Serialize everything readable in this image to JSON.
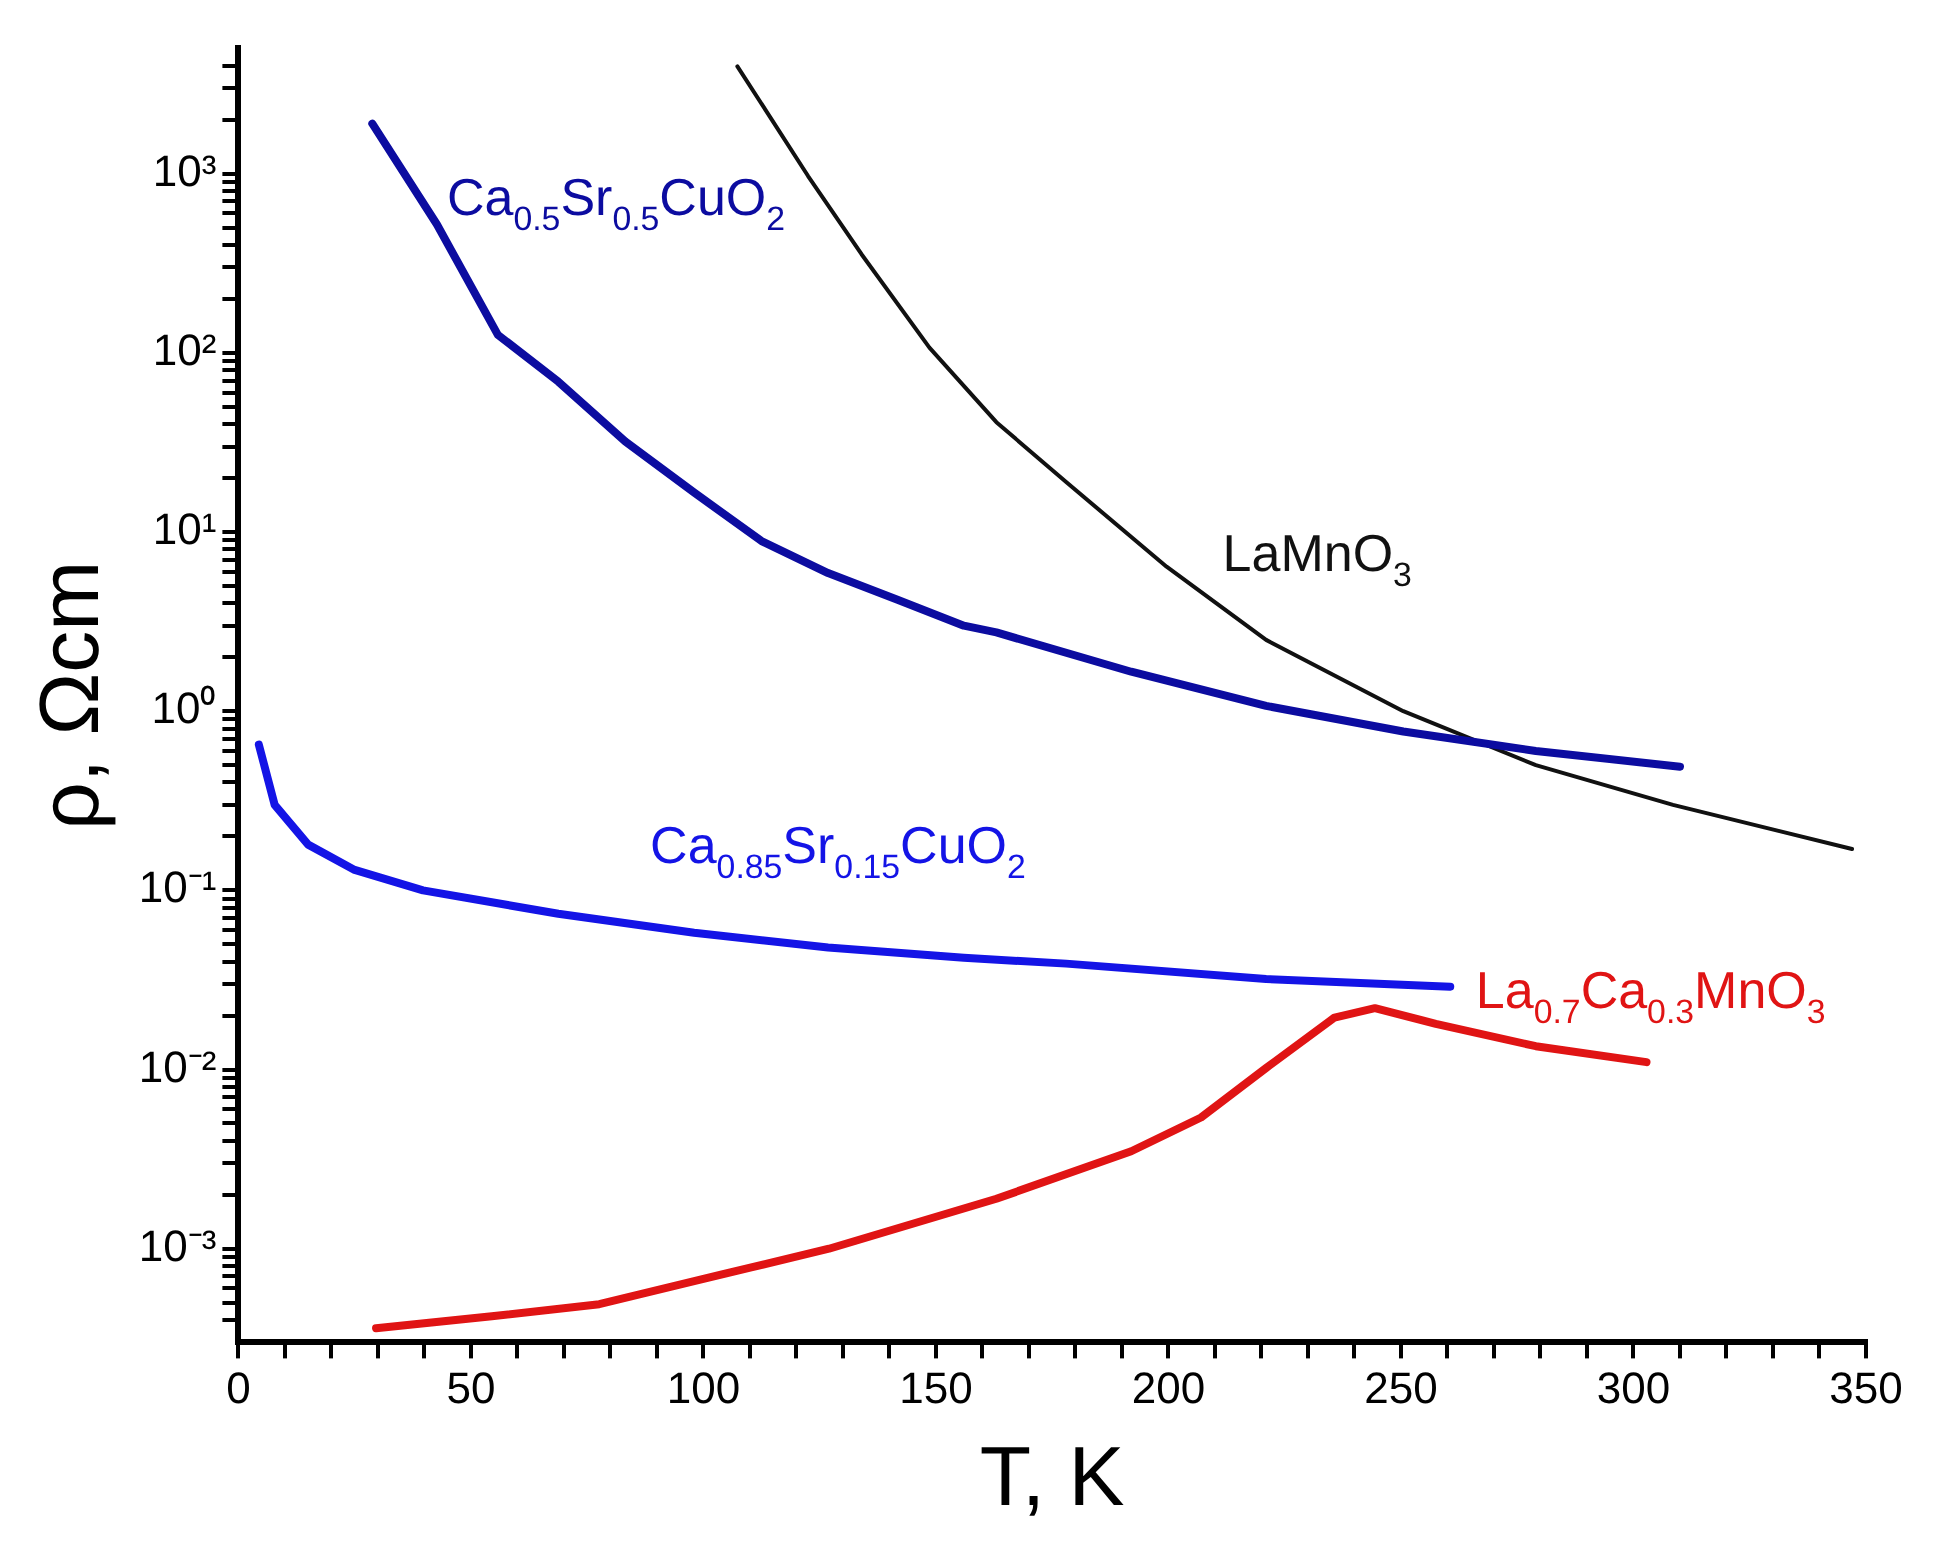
{
  "chart_data": {
    "type": "line",
    "xlabel": "T, K",
    "ylabel": "ρ, Ωcm",
    "log": "y",
    "grid": false,
    "legend": false,
    "marker": "none",
    "line_style": "solid",
    "xlim": [
      0,
      350
    ],
    "ylim": [
      0.0003,
      5000
    ],
    "xticks": [
      0,
      {
        "value": 10,
        "label": null
      },
      {
        "value": 20,
        "label": null
      },
      {
        "value": 30,
        "label": null
      },
      {
        "value": 40,
        "label": null
      },
      50,
      {
        "value": 60,
        "label": null
      },
      {
        "value": 70,
        "label": null
      },
      {
        "value": 80,
        "label": null
      },
      {
        "value": 90,
        "label": null
      },
      100,
      {
        "value": 110,
        "label": null
      },
      {
        "value": 120,
        "label": null
      },
      {
        "value": 130,
        "label": null
      },
      {
        "value": 140,
        "label": null
      },
      150,
      {
        "value": 160,
        "label": null
      },
      {
        "value": 170,
        "label": null
      },
      {
        "value": 180,
        "label": null
      },
      {
        "value": 190,
        "label": null
      },
      200,
      {
        "value": 210,
        "label": null
      },
      {
        "value": 220,
        "label": null
      },
      {
        "value": 230,
        "label": null
      },
      {
        "value": 240,
        "label": null
      },
      250,
      {
        "value": 260,
        "label": null
      },
      {
        "value": 270,
        "label": null
      },
      {
        "value": 280,
        "label": null
      },
      {
        "value": 290,
        "label": null
      },
      300,
      {
        "value": 310,
        "label": null
      },
      {
        "value": 320,
        "label": null
      },
      {
        "value": 330,
        "label": null
      },
      {
        "value": 340,
        "label": null
      },
      350
    ],
    "yticks": [
      {
        "value": 0.0004,
        "label": null
      },
      {
        "value": 0.0005,
        "label": null
      },
      {
        "value": 0.0006,
        "label": null
      },
      {
        "value": 0.0007,
        "label": null
      },
      {
        "value": 0.0008,
        "label": null
      },
      {
        "value": 0.0009,
        "label": null
      },
      {
        "value": 0.001,
        "label": "10⁻³"
      },
      {
        "value": 0.002,
        "label": null
      },
      {
        "value": 0.003,
        "label": null
      },
      {
        "value": 0.004,
        "label": null
      },
      {
        "value": 0.005,
        "label": null
      },
      {
        "value": 0.006,
        "label": null
      },
      {
        "value": 0.007,
        "label": null
      },
      {
        "value": 0.008,
        "label": null
      },
      {
        "value": 0.009,
        "label": null
      },
      {
        "value": 0.01,
        "label": "10⁻²"
      },
      {
        "value": 0.02,
        "label": null
      },
      {
        "value": 0.03,
        "label": null
      },
      {
        "value": 0.04,
        "label": null
      },
      {
        "value": 0.05,
        "label": null
      },
      {
        "value": 0.06,
        "label": null
      },
      {
        "value": 0.07,
        "label": null
      },
      {
        "value": 0.08,
        "label": null
      },
      {
        "value": 0.09,
        "label": null
      },
      {
        "value": 0.1,
        "label": "10⁻¹"
      },
      {
        "value": 0.2,
        "label": null
      },
      {
        "value": 0.3,
        "label": null
      },
      {
        "value": 0.4,
        "label": null
      },
      {
        "value": 0.5,
        "label": null
      },
      {
        "value": 0.6,
        "label": null
      },
      {
        "value": 0.7,
        "label": null
      },
      {
        "value": 0.8,
        "label": null
      },
      {
        "value": 0.9,
        "label": null
      },
      {
        "value": 1,
        "label": "10⁰"
      },
      {
        "value": 2,
        "label": null
      },
      {
        "value": 3,
        "label": null
      },
      {
        "value": 4,
        "label": null
      },
      {
        "value": 5,
        "label": null
      },
      {
        "value": 6,
        "label": null
      },
      {
        "value": 7,
        "label": null
      },
      {
        "value": 8,
        "label": null
      },
      {
        "value": 9,
        "label": null
      },
      {
        "value": 10,
        "label": "10¹"
      },
      {
        "value": 20,
        "label": null
      },
      {
        "value": 30,
        "label": null
      },
      {
        "value": 40,
        "label": null
      },
      {
        "value": 50,
        "label": null
      },
      {
        "value": 60,
        "label": null
      },
      {
        "value": 70,
        "label": null
      },
      {
        "value": 80,
        "label": null
      },
      {
        "value": 90,
        "label": null
      },
      {
        "value": 100,
        "label": "10²"
      },
      {
        "value": 200,
        "label": null
      },
      {
        "value": 300,
        "label": null
      },
      {
        "value": 400,
        "label": null
      },
      {
        "value": 500,
        "label": null
      },
      {
        "value": 600,
        "label": null
      },
      {
        "value": 700,
        "label": null
      },
      {
        "value": 800,
        "label": null
      },
      {
        "value": 900,
        "label": null
      },
      {
        "value": 1000,
        "label": "10³"
      },
      {
        "value": 2000,
        "label": null
      },
      {
        "value": 3000,
        "label": null
      },
      {
        "value": 4000,
        "label": null
      }
    ],
    "series": [
      {
        "name": "Ca$_{0.5}$Sr$_{0.5}$CuO$_{2}$",
        "color": "#0c0ca0",
        "x": [
          28.8,
          42.7,
          55.8,
          68.8,
          83.2,
          98,
          112.5,
          126.8,
          141.6,
          156,
          163,
          192,
          221,
          250.5,
          279,
          310
        ],
        "values": [
          1900,
          520,
          126,
          69,
          32,
          16.6,
          8.9,
          5.9,
          4.2,
          3.0,
          2.75,
          1.66,
          1.07,
          0.77,
          0.6,
          0.49
        ]
      },
      {
        "name": "LaMnO$_{3}$",
        "color": "#111111",
        "x": [
          107.3,
          122.5,
          134,
          148.6,
          163,
          178,
          199.6,
          221,
          250.5,
          279,
          308.5,
          347
        ],
        "values": [
          3970,
          970,
          355,
          107,
          41,
          19,
          6.4,
          2.5,
          1.0,
          0.5,
          0.3,
          0.17
        ]
      },
      {
        "name": "Ca$_{0.85}$Sr$_{0.15}$CuO$_{2}$",
        "color": "#1414e6",
        "x": [
          4.4,
          7.8,
          15,
          25,
          39.7,
          68.8,
          98,
          126.8,
          156,
          178,
          221,
          260.6
        ],
        "values": [
          0.65,
          0.3,
          0.18,
          0.13,
          0.1,
          0.074,
          0.058,
          0.048,
          0.042,
          0.039,
          0.032,
          0.029
        ]
      },
      {
        "name": "La$_{0.7}$Ca$_{0.3}$MnO$_{3}$",
        "color": "#e01414",
        "x": [
          29.6,
          54.5,
          77.6,
          98,
          127,
          163,
          192,
          207,
          221,
          235.7,
          244.4,
          257.5,
          279,
          302.8
        ],
        "values": [
          0.00036,
          0.00042,
          0.00049,
          0.00066,
          0.001,
          0.0019,
          0.0035,
          0.0054,
          0.0102,
          0.0195,
          0.022,
          0.018,
          0.0135,
          0.011
        ]
      }
    ]
  }
}
